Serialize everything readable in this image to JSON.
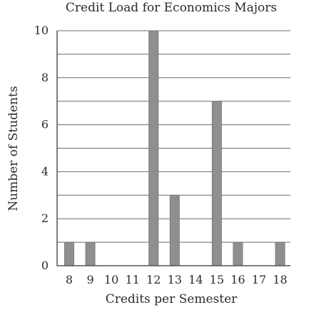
{
  "chart_data": {
    "type": "bar",
    "title": "Credit Load for Economics Majors",
    "xlabel": "Credits per Semester",
    "ylabel": "Number of Students",
    "categories": [
      "8",
      "9",
      "10",
      "11",
      "12",
      "13",
      "14",
      "15",
      "16",
      "17",
      "18"
    ],
    "values": [
      1,
      1,
      0,
      0,
      10,
      3,
      0,
      7,
      1,
      0,
      1
    ],
    "ylim": [
      0,
      10
    ],
    "y_ticks": [
      0,
      2,
      4,
      6,
      8,
      10
    ],
    "grid": true,
    "gridline_step": 1,
    "colors": {
      "bar": "#8f8f8f",
      "grid": "#6d6d6d",
      "text": "#2b2b2b"
    }
  }
}
